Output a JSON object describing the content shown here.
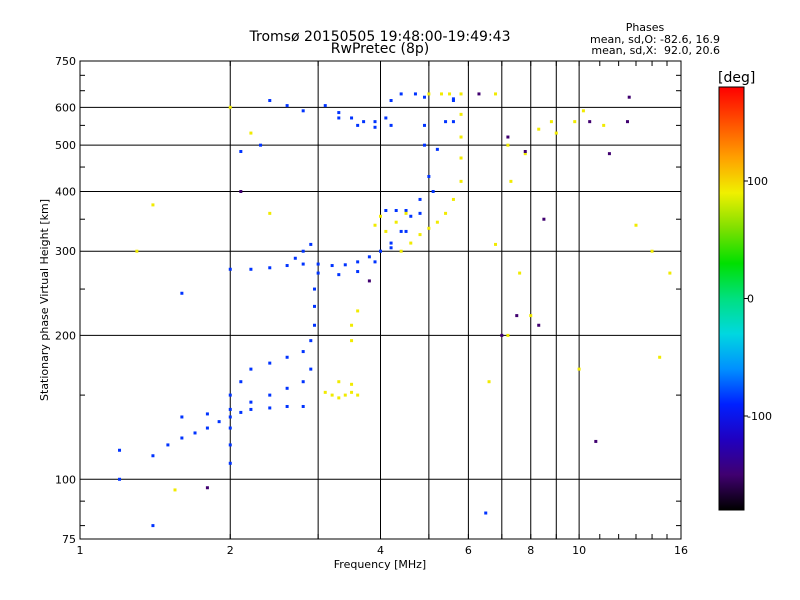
{
  "chart_data": {
    "type": "scatter",
    "title": "Tromsø 20150505 19:48:00-19:49:43",
    "subtitle": "RwPretec (8p)",
    "xlabel": "Frequency [MHz]",
    "ylabel": "Stationary phase Virtual Height [km]",
    "x_scale": "log",
    "y_scale": "log",
    "xlim": [
      1,
      16
    ],
    "ylim": [
      75,
      750
    ],
    "grid": true,
    "x_ticks": [
      1,
      2,
      4,
      6,
      8,
      10,
      16
    ],
    "x_ticks_unlabeled": [
      3,
      5,
      7,
      9
    ],
    "y_ticks": [
      75,
      100,
      200,
      300,
      400,
      500,
      600,
      750
    ],
    "stats": {
      "title": "Phases",
      "line_o": "mean, sd,O: -82.6, 16.9",
      "line_x": "mean, sd,X:  92.0, 20.6"
    },
    "colorbar": {
      "label": "[deg]",
      "range": [
        -180,
        180
      ],
      "ticks": [
        100,
        0,
        -100
      ],
      "colors": [
        "#000000",
        "#400070",
        "#2000c0",
        "#0020ff",
        "#0090ff",
        "#00d8e0",
        "#00e080",
        "#00e000",
        "#80e000",
        "#f0f000",
        "#ffa000",
        "#ff5000",
        "#ff0000"
      ]
    },
    "series": [
      {
        "trace": "O",
        "phase_deg": -85,
        "points": [
          [
            1.4,
            112
          ],
          [
            1.5,
            118
          ],
          [
            1.6,
            122
          ],
          [
            1.7,
            125
          ],
          [
            1.8,
            128
          ],
          [
            1.9,
            132
          ],
          [
            2.0,
            135
          ],
          [
            2.1,
            138
          ],
          [
            2.2,
            140
          ],
          [
            2.4,
            141
          ],
          [
            2.6,
            142
          ],
          [
            2.8,
            142
          ],
          [
            1.6,
            135
          ],
          [
            1.8,
            137
          ],
          [
            2.0,
            140
          ],
          [
            2.2,
            145
          ],
          [
            2.4,
            150
          ],
          [
            2.6,
            155
          ],
          [
            2.8,
            160
          ],
          [
            2.9,
            170
          ],
          [
            2.0,
            150
          ],
          [
            2.1,
            160
          ],
          [
            2.2,
            170
          ],
          [
            2.4,
            175
          ],
          [
            2.6,
            180
          ],
          [
            2.8,
            185
          ],
          [
            2.9,
            195
          ],
          [
            2.95,
            210
          ],
          [
            2.95,
            230
          ],
          [
            2.95,
            250
          ],
          [
            2.0,
            108
          ],
          [
            2.0,
            118
          ],
          [
            2.0,
            128
          ],
          [
            2.0,
            275
          ],
          [
            2.2,
            275
          ],
          [
            2.4,
            277
          ],
          [
            2.6,
            280
          ],
          [
            2.8,
            282
          ],
          [
            3.0,
            282
          ],
          [
            3.2,
            280
          ],
          [
            3.4,
            281
          ],
          [
            3.6,
            285
          ],
          [
            3.8,
            292
          ],
          [
            4.0,
            300
          ],
          [
            4.2,
            312
          ],
          [
            4.4,
            330
          ],
          [
            4.6,
            355
          ],
          [
            4.8,
            385
          ],
          [
            5.0,
            430
          ],
          [
            5.2,
            490
          ],
          [
            5.4,
            560
          ],
          [
            5.6,
            625
          ],
          [
            3.0,
            270
          ],
          [
            3.3,
            268
          ],
          [
            3.6,
            272
          ],
          [
            3.9,
            285
          ],
          [
            4.2,
            305
          ],
          [
            4.5,
            330
          ],
          [
            4.8,
            360
          ],
          [
            5.1,
            400
          ],
          [
            2.7,
            290
          ],
          [
            2.8,
            300
          ],
          [
            2.9,
            310
          ],
          [
            4.1,
            365
          ],
          [
            4.3,
            365
          ],
          [
            4.5,
            365
          ],
          [
            3.1,
            605
          ],
          [
            3.3,
            585
          ],
          [
            3.5,
            570
          ],
          [
            3.7,
            560
          ],
          [
            3.9,
            560
          ],
          [
            4.1,
            570
          ],
          [
            3.3,
            570
          ],
          [
            3.6,
            550
          ],
          [
            3.9,
            545
          ],
          [
            4.2,
            550
          ],
          [
            2.4,
            620
          ],
          [
            2.6,
            605
          ],
          [
            2.8,
            590
          ],
          [
            2.1,
            485
          ],
          [
            2.3,
            500
          ],
          [
            4.2,
            620
          ],
          [
            4.4,
            640
          ],
          [
            4.7,
            640
          ],
          [
            4.9,
            630
          ],
          [
            4.9,
            500
          ],
          [
            4.9,
            550
          ],
          [
            5.6,
            620
          ],
          [
            5.6,
            560
          ],
          [
            1.6,
            245
          ],
          [
            1.2,
            100
          ],
          [
            1.4,
            80
          ],
          [
            1.2,
            115
          ],
          [
            6.5,
            85
          ]
        ]
      },
      {
        "trace": "X",
        "phase_deg": 92,
        "points": [
          [
            3.1,
            152
          ],
          [
            3.2,
            150
          ],
          [
            3.3,
            148
          ],
          [
            3.4,
            150
          ],
          [
            3.5,
            152
          ],
          [
            3.6,
            150
          ],
          [
            3.3,
            160
          ],
          [
            3.5,
            158
          ],
          [
            3.5,
            195
          ],
          [
            3.5,
            210
          ],
          [
            3.6,
            225
          ],
          [
            4.4,
            300
          ],
          [
            4.6,
            312
          ],
          [
            4.8,
            325
          ],
          [
            5.0,
            335
          ],
          [
            5.2,
            345
          ],
          [
            5.4,
            360
          ],
          [
            5.6,
            385
          ],
          [
            5.8,
            420
          ],
          [
            5.8,
            470
          ],
          [
            5.8,
            520
          ],
          [
            5.8,
            580
          ],
          [
            5.8,
            640
          ],
          [
            4.1,
            330
          ],
          [
            4.3,
            345
          ],
          [
            4.5,
            360
          ],
          [
            5.0,
            640
          ],
          [
            5.3,
            640
          ],
          [
            5.5,
            640
          ],
          [
            6.8,
            640
          ],
          [
            4.0,
            355
          ],
          [
            3.9,
            340
          ],
          [
            1.4,
            375
          ],
          [
            1.3,
            300
          ],
          [
            1.55,
            95
          ],
          [
            2.2,
            530
          ],
          [
            2.0,
            600
          ],
          [
            2.4,
            360
          ],
          [
            7.2,
            500
          ],
          [
            7.3,
            420
          ],
          [
            7.6,
            270
          ],
          [
            7.8,
            480
          ],
          [
            8.3,
            540
          ],
          [
            8.8,
            560
          ],
          [
            9.0,
            530
          ],
          [
            9.8,
            560
          ],
          [
            10.2,
            590
          ],
          [
            11.2,
            550
          ],
          [
            13.0,
            340
          ],
          [
            14.0,
            300
          ],
          [
            15.2,
            270
          ],
          [
            14.5,
            180
          ],
          [
            8.0,
            220
          ],
          [
            7.2,
            200
          ],
          [
            6.8,
            310
          ],
          [
            6.6,
            160
          ],
          [
            10.0,
            170
          ]
        ]
      },
      {
        "trace": "other",
        "phase_deg": -150,
        "points": [
          [
            6.3,
            640
          ],
          [
            7.2,
            520
          ],
          [
            7.8,
            485
          ],
          [
            8.5,
            350
          ],
          [
            10.5,
            560
          ],
          [
            12.6,
            630
          ],
          [
            12.5,
            560
          ],
          [
            11.5,
            480
          ],
          [
            7.0,
            200
          ],
          [
            7.5,
            220
          ],
          [
            8.3,
            210
          ],
          [
            2.1,
            400
          ],
          [
            3.8,
            260
          ],
          [
            10.8,
            120
          ],
          [
            1.8,
            96
          ]
        ]
      }
    ]
  }
}
